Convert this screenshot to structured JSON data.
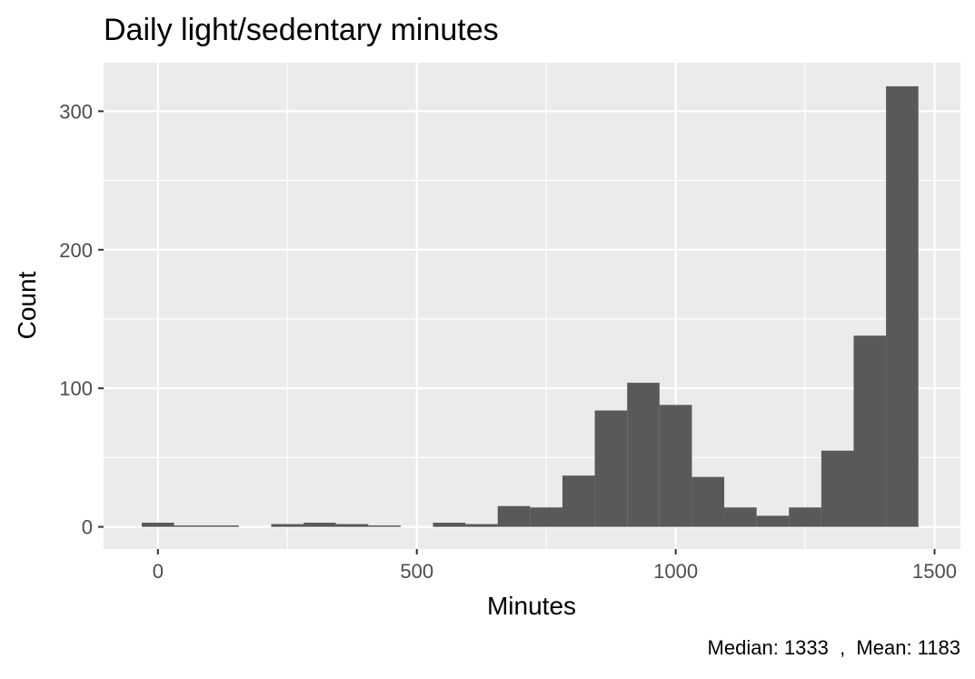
{
  "chart_data": {
    "type": "bar",
    "subtype": "histogram",
    "title": "Daily light/sedentary minutes",
    "xlabel": "Minutes",
    "ylabel": "Count",
    "caption": "Median: 1333  ,  Mean: 1183",
    "xlim": [
      -105,
      1550
    ],
    "ylim": [
      -16,
      335
    ],
    "x_ticks": [
      0,
      500,
      1000,
      1500
    ],
    "y_ticks": [
      0,
      100,
      200,
      300
    ],
    "grid": true,
    "background_color": "#ebebeb",
    "bar_color": "#595959",
    "bin_width": 62.5,
    "bins": [
      {
        "start": -31.25,
        "end": 31.25,
        "count": 3
      },
      {
        "start": 31.25,
        "end": 93.75,
        "count": 1
      },
      {
        "start": 93.75,
        "end": 156.25,
        "count": 1
      },
      {
        "start": 156.25,
        "end": 218.75,
        "count": 0
      },
      {
        "start": 218.75,
        "end": 281.25,
        "count": 2
      },
      {
        "start": 281.25,
        "end": 343.75,
        "count": 3
      },
      {
        "start": 343.75,
        "end": 406.25,
        "count": 2
      },
      {
        "start": 406.25,
        "end": 468.75,
        "count": 1
      },
      {
        "start": 468.75,
        "end": 531.25,
        "count": 0
      },
      {
        "start": 531.25,
        "end": 593.75,
        "count": 3
      },
      {
        "start": 593.75,
        "end": 656.25,
        "count": 2
      },
      {
        "start": 656.25,
        "end": 718.75,
        "count": 15
      },
      {
        "start": 718.75,
        "end": 781.25,
        "count": 14
      },
      {
        "start": 781.25,
        "end": 843.75,
        "count": 37
      },
      {
        "start": 843.75,
        "end": 906.25,
        "count": 84
      },
      {
        "start": 906.25,
        "end": 968.75,
        "count": 104
      },
      {
        "start": 968.75,
        "end": 1031.25,
        "count": 88
      },
      {
        "start": 1031.25,
        "end": 1093.75,
        "count": 36
      },
      {
        "start": 1093.75,
        "end": 1156.25,
        "count": 14
      },
      {
        "start": 1156.25,
        "end": 1218.75,
        "count": 8
      },
      {
        "start": 1218.75,
        "end": 1281.25,
        "count": 14
      },
      {
        "start": 1281.25,
        "end": 1343.75,
        "count": 55
      },
      {
        "start": 1343.75,
        "end": 1406.25,
        "count": 138
      },
      {
        "start": 1406.25,
        "end": 1468.75,
        "count": 318
      }
    ]
  }
}
